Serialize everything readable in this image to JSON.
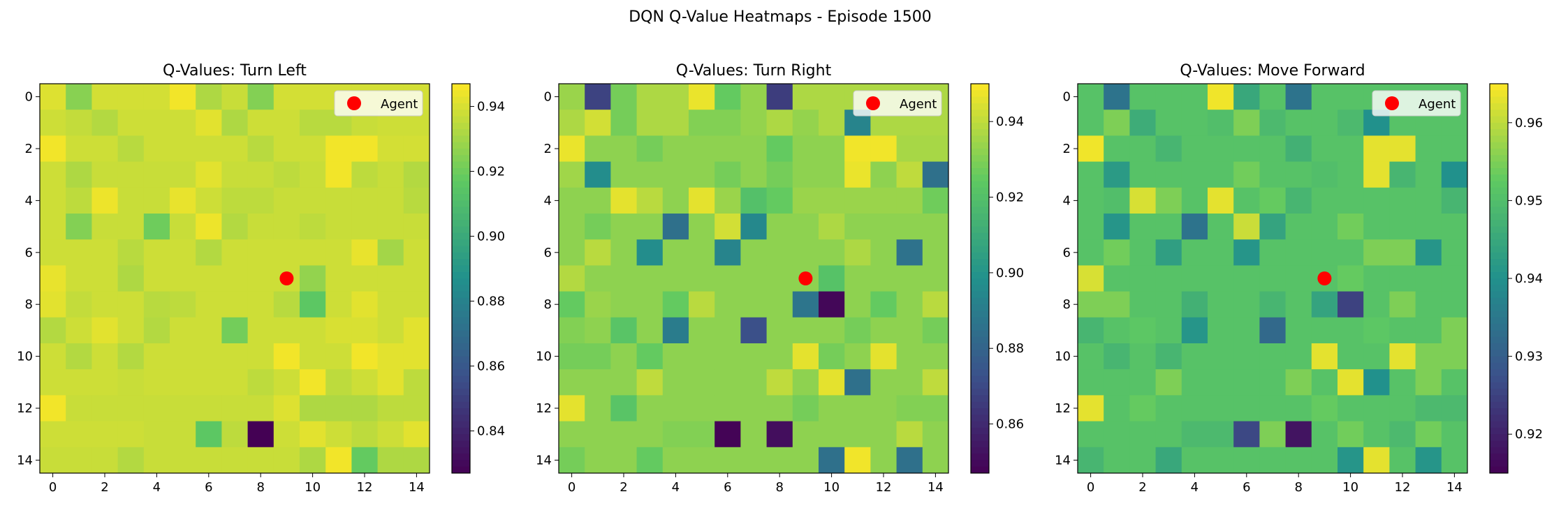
{
  "figure": {
    "title": "DQN Q-Value Heatmaps - Episode 1500"
  },
  "colormap": {
    "name": "viridis",
    "stops": [
      "#440154",
      "#3b528b",
      "#21918c",
      "#5ec962",
      "#fde725"
    ]
  },
  "marker_color": "#ff0000",
  "chart_data": [
    {
      "type": "heatmap",
      "title": "Q-Values: Turn Left",
      "grid_size": 15,
      "xticks": [
        "0",
        "2",
        "4",
        "6",
        "8",
        "10",
        "12",
        "14"
      ],
      "yticks": [
        "0",
        "2",
        "4",
        "6",
        "8",
        "10",
        "12",
        "14"
      ],
      "range": [
        0.827,
        0.947
      ],
      "colorbar_ticks": [
        "0.84",
        "0.86",
        "0.88",
        "0.90",
        "0.92",
        "0.94"
      ],
      "agent": {
        "label": "Agent",
        "x": 9,
        "y": 7
      },
      "legend_position": "upper right",
      "values": [
        [
          0.941,
          0.925,
          0.939,
          0.939,
          0.939,
          0.945,
          0.932,
          0.937,
          0.924,
          0.939,
          0.939,
          0.939,
          0.939,
          0.939,
          0.939
        ],
        [
          0.938,
          0.936,
          0.933,
          0.938,
          0.938,
          0.938,
          0.942,
          0.932,
          0.938,
          0.938,
          0.934,
          0.934,
          0.937,
          0.938,
          0.938
        ],
        [
          0.945,
          0.938,
          0.938,
          0.934,
          0.938,
          0.938,
          0.938,
          0.938,
          0.934,
          0.938,
          0.938,
          0.945,
          0.945,
          0.939,
          0.939
        ],
        [
          0.938,
          0.932,
          0.937,
          0.937,
          0.937,
          0.937,
          0.942,
          0.937,
          0.937,
          0.935,
          0.937,
          0.945,
          0.935,
          0.937,
          0.933
        ],
        [
          0.938,
          0.935,
          0.944,
          0.937,
          0.937,
          0.943,
          0.938,
          0.935,
          0.935,
          0.937,
          0.937,
          0.937,
          0.937,
          0.937,
          0.934
        ],
        [
          0.938,
          0.924,
          0.937,
          0.937,
          0.92,
          0.937,
          0.944,
          0.933,
          0.937,
          0.937,
          0.935,
          0.937,
          0.937,
          0.937,
          0.937
        ],
        [
          0.938,
          0.938,
          0.938,
          0.934,
          0.938,
          0.938,
          0.933,
          0.938,
          0.938,
          0.938,
          0.938,
          0.938,
          0.943,
          0.93,
          0.938
        ],
        [
          0.943,
          0.938,
          0.938,
          0.932,
          0.938,
          0.938,
          0.938,
          0.938,
          0.938,
          0.938,
          0.927,
          0.938,
          0.938,
          0.938,
          0.938
        ],
        [
          0.942,
          0.936,
          0.938,
          0.938,
          0.934,
          0.935,
          0.938,
          0.938,
          0.938,
          0.934,
          0.916,
          0.938,
          0.942,
          0.938,
          0.938
        ],
        [
          0.933,
          0.938,
          0.942,
          0.938,
          0.933,
          0.938,
          0.938,
          0.921,
          0.938,
          0.938,
          0.938,
          0.94,
          0.94,
          0.938,
          0.942
        ],
        [
          0.938,
          0.933,
          0.938,
          0.933,
          0.938,
          0.938,
          0.938,
          0.938,
          0.938,
          0.945,
          0.938,
          0.938,
          0.945,
          0.942,
          0.942
        ],
        [
          0.938,
          0.938,
          0.938,
          0.937,
          0.938,
          0.938,
          0.938,
          0.938,
          0.935,
          0.938,
          0.945,
          0.935,
          0.938,
          0.942,
          0.935
        ],
        [
          0.945,
          0.937,
          0.937,
          0.937,
          0.937,
          0.937,
          0.937,
          0.937,
          0.937,
          0.941,
          0.932,
          0.932,
          0.932,
          0.935,
          0.935
        ],
        [
          0.938,
          0.938,
          0.938,
          0.938,
          0.937,
          0.937,
          0.916,
          0.935,
          0.827,
          0.938,
          0.942,
          0.938,
          0.935,
          0.938,
          0.942
        ],
        [
          0.937,
          0.937,
          0.937,
          0.933,
          0.937,
          0.937,
          0.937,
          0.937,
          0.937,
          0.937,
          0.932,
          0.945,
          0.918,
          0.932,
          0.932
        ]
      ]
    },
    {
      "type": "heatmap",
      "title": "Q-Values: Turn Right",
      "grid_size": 15,
      "xticks": [
        "0",
        "2",
        "4",
        "6",
        "8",
        "10",
        "12",
        "14"
      ],
      "yticks": [
        "0",
        "2",
        "4",
        "6",
        "8",
        "10",
        "12",
        "14"
      ],
      "range": [
        0.847,
        0.95
      ],
      "colorbar_ticks": [
        "0.86",
        "0.88",
        "0.90",
        "0.92",
        "0.94"
      ],
      "agent": {
        "label": "Agent",
        "x": 9,
        "y": 7
      },
      "legend_position": "upper right",
      "values": [
        [
          0.934,
          0.868,
          0.928,
          0.937,
          0.937,
          0.947,
          0.925,
          0.933,
          0.866,
          0.937,
          0.937,
          0.937,
          0.937,
          0.937,
          0.937
        ],
        [
          0.937,
          0.943,
          0.928,
          0.937,
          0.937,
          0.93,
          0.93,
          0.933,
          0.937,
          0.933,
          0.937,
          0.893,
          0.937,
          0.937,
          0.937
        ],
        [
          0.947,
          0.932,
          0.932,
          0.928,
          0.932,
          0.932,
          0.932,
          0.932,
          0.925,
          0.932,
          0.932,
          0.948,
          0.948,
          0.936,
          0.936
        ],
        [
          0.935,
          0.897,
          0.932,
          0.932,
          0.932,
          0.932,
          0.928,
          0.932,
          0.928,
          0.932,
          0.932,
          0.947,
          0.932,
          0.94,
          0.885
        ],
        [
          0.932,
          0.932,
          0.946,
          0.939,
          0.932,
          0.946,
          0.934,
          0.92,
          0.925,
          0.934,
          0.934,
          0.934,
          0.934,
          0.934,
          0.927
        ],
        [
          0.932,
          0.928,
          0.932,
          0.932,
          0.885,
          0.932,
          0.943,
          0.895,
          0.932,
          0.932,
          0.937,
          0.932,
          0.932,
          0.932,
          0.932
        ],
        [
          0.932,
          0.939,
          0.932,
          0.897,
          0.932,
          0.932,
          0.893,
          0.932,
          0.932,
          0.932,
          0.932,
          0.937,
          0.932,
          0.886,
          0.932
        ],
        [
          0.938,
          0.932,
          0.932,
          0.932,
          0.932,
          0.932,
          0.932,
          0.932,
          0.932,
          0.932,
          0.921,
          0.932,
          0.932,
          0.932,
          0.932
        ],
        [
          0.925,
          0.934,
          0.932,
          0.932,
          0.925,
          0.939,
          0.932,
          0.932,
          0.932,
          0.887,
          0.849,
          0.932,
          0.925,
          0.932,
          0.939
        ],
        [
          0.93,
          0.932,
          0.922,
          0.932,
          0.89,
          0.932,
          0.932,
          0.872,
          0.932,
          0.932,
          0.932,
          0.928,
          0.932,
          0.932,
          0.928
        ],
        [
          0.928,
          0.928,
          0.932,
          0.925,
          0.932,
          0.932,
          0.932,
          0.932,
          0.932,
          0.946,
          0.928,
          0.932,
          0.946,
          0.932,
          0.932
        ],
        [
          0.932,
          0.932,
          0.932,
          0.94,
          0.932,
          0.932,
          0.932,
          0.932,
          0.94,
          0.932,
          0.946,
          0.885,
          0.932,
          0.932,
          0.94
        ],
        [
          0.946,
          0.932,
          0.922,
          0.932,
          0.932,
          0.932,
          0.932,
          0.932,
          0.932,
          0.928,
          0.932,
          0.932,
          0.932,
          0.93,
          0.93
        ],
        [
          0.932,
          0.932,
          0.932,
          0.932,
          0.93,
          0.93,
          0.848,
          0.932,
          0.851,
          0.932,
          0.932,
          0.932,
          0.932,
          0.939,
          0.932
        ],
        [
          0.928,
          0.932,
          0.932,
          0.925,
          0.932,
          0.932,
          0.932,
          0.932,
          0.932,
          0.932,
          0.885,
          0.948,
          0.932,
          0.885,
          0.932
        ]
      ]
    },
    {
      "type": "heatmap",
      "title": "Q-Values: Move Forward",
      "grid_size": 15,
      "xticks": [
        "0",
        "2",
        "4",
        "6",
        "8",
        "10",
        "12",
        "14"
      ],
      "yticks": [
        "0",
        "2",
        "4",
        "6",
        "8",
        "10",
        "12",
        "14"
      ],
      "range": [
        0.915,
        0.965
      ],
      "colorbar_ticks": [
        "0.92",
        "0.93",
        "0.94",
        "0.95",
        "0.96"
      ],
      "agent": {
        "label": "Agent",
        "x": 9,
        "y": 7
      },
      "legend_position": "upper right",
      "values": [
        [
          0.951,
          0.934,
          0.951,
          0.951,
          0.951,
          0.964,
          0.945,
          0.951,
          0.934,
          0.951,
          0.951,
          0.951,
          0.951,
          0.951,
          0.951
        ],
        [
          0.951,
          0.955,
          0.946,
          0.951,
          0.951,
          0.95,
          0.955,
          0.949,
          0.951,
          0.951,
          0.949,
          0.94,
          0.951,
          0.951,
          0.951
        ],
        [
          0.964,
          0.951,
          0.951,
          0.948,
          0.951,
          0.951,
          0.951,
          0.951,
          0.947,
          0.951,
          0.951,
          0.963,
          0.963,
          0.951,
          0.951
        ],
        [
          0.951,
          0.942,
          0.951,
          0.951,
          0.951,
          0.951,
          0.954,
          0.951,
          0.951,
          0.95,
          0.951,
          0.963,
          0.948,
          0.951,
          0.94
        ],
        [
          0.951,
          0.95,
          0.962,
          0.955,
          0.951,
          0.963,
          0.951,
          0.953,
          0.948,
          0.951,
          0.951,
          0.951,
          0.951,
          0.951,
          0.948
        ],
        [
          0.951,
          0.941,
          0.951,
          0.951,
          0.934,
          0.951,
          0.961,
          0.944,
          0.951,
          0.951,
          0.954,
          0.951,
          0.951,
          0.951,
          0.951
        ],
        [
          0.951,
          0.954,
          0.951,
          0.943,
          0.951,
          0.951,
          0.941,
          0.951,
          0.951,
          0.951,
          0.951,
          0.955,
          0.955,
          0.941,
          0.951
        ],
        [
          0.962,
          0.951,
          0.951,
          0.951,
          0.951,
          0.951,
          0.951,
          0.951,
          0.951,
          0.951,
          0.953,
          0.951,
          0.951,
          0.951,
          0.951
        ],
        [
          0.955,
          0.955,
          0.951,
          0.951,
          0.947,
          0.951,
          0.951,
          0.948,
          0.951,
          0.944,
          0.925,
          0.951,
          0.955,
          0.951,
          0.951
        ],
        [
          0.948,
          0.951,
          0.952,
          0.951,
          0.941,
          0.951,
          0.951,
          0.932,
          0.951,
          0.951,
          0.951,
          0.952,
          0.951,
          0.951,
          0.955
        ],
        [
          0.951,
          0.948,
          0.951,
          0.948,
          0.951,
          0.951,
          0.951,
          0.951,
          0.951,
          0.963,
          0.951,
          0.951,
          0.963,
          0.955,
          0.955
        ],
        [
          0.951,
          0.951,
          0.951,
          0.955,
          0.951,
          0.951,
          0.951,
          0.951,
          0.955,
          0.951,
          0.963,
          0.94,
          0.951,
          0.955,
          0.951
        ],
        [
          0.963,
          0.951,
          0.953,
          0.951,
          0.951,
          0.951,
          0.951,
          0.951,
          0.951,
          0.953,
          0.951,
          0.951,
          0.951,
          0.949,
          0.949
        ],
        [
          0.951,
          0.951,
          0.951,
          0.951,
          0.949,
          0.949,
          0.926,
          0.955,
          0.918,
          0.951,
          0.954,
          0.951,
          0.949,
          0.954,
          0.951
        ],
        [
          0.948,
          0.951,
          0.951,
          0.945,
          0.951,
          0.951,
          0.951,
          0.951,
          0.951,
          0.951,
          0.941,
          0.963,
          0.951,
          0.941,
          0.951
        ]
      ]
    }
  ]
}
